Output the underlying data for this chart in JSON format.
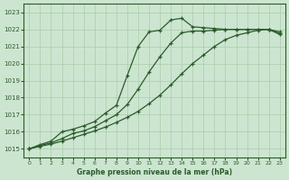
{
  "background_color": "#cce5d0",
  "grid_color": "#aaccaa",
  "line_color": "#2a5c2a",
  "marker_color": "#2a5c2a",
  "xlabel": "Graphe pression niveau de la mer (hPa)",
  "xlim": [
    -0.5,
    23.5
  ],
  "ylim": [
    1014.5,
    1023.5
  ],
  "yticks": [
    1015,
    1016,
    1017,
    1018,
    1019,
    1020,
    1021,
    1022,
    1023
  ],
  "xticks": [
    0,
    1,
    2,
    3,
    4,
    5,
    6,
    7,
    8,
    9,
    10,
    11,
    12,
    13,
    14,
    15,
    16,
    17,
    18,
    19,
    20,
    21,
    22,
    23
  ],
  "series1_x": [
    0,
    1,
    2,
    3,
    4,
    5,
    6,
    7,
    8,
    9,
    10,
    11,
    12,
    13,
    14,
    15,
    16,
    17,
    18,
    19,
    20,
    21,
    22,
    23
  ],
  "series1_y": [
    1015.0,
    1015.25,
    1015.45,
    1016.0,
    1016.15,
    1016.35,
    1016.6,
    1017.1,
    1017.55,
    1019.3,
    1021.0,
    1021.85,
    1021.95,
    1022.55,
    1022.65,
    1022.15,
    1022.1,
    1022.05,
    1022.0,
    1022.0,
    1022.0,
    1022.0,
    1022.0,
    1021.85
  ],
  "series2_x": [
    0,
    1,
    2,
    3,
    4,
    5,
    6,
    7,
    8,
    9,
    10,
    11,
    12,
    13,
    14,
    15,
    16,
    17,
    18,
    19,
    20,
    21,
    22,
    23
  ],
  "series2_y": [
    1015.0,
    1015.2,
    1015.35,
    1015.6,
    1015.9,
    1016.05,
    1016.3,
    1016.65,
    1017.0,
    1017.6,
    1018.5,
    1019.5,
    1020.4,
    1021.2,
    1021.8,
    1021.9,
    1021.9,
    1021.95,
    1022.0,
    1022.0,
    1022.0,
    1022.0,
    1022.0,
    1021.75
  ],
  "series3_x": [
    0,
    1,
    2,
    3,
    4,
    5,
    6,
    7,
    8,
    9,
    10,
    11,
    12,
    13,
    14,
    15,
    16,
    17,
    18,
    19,
    20,
    21,
    22,
    23
  ],
  "series3_y": [
    1015.0,
    1015.15,
    1015.28,
    1015.45,
    1015.65,
    1015.85,
    1016.05,
    1016.28,
    1016.55,
    1016.85,
    1017.2,
    1017.65,
    1018.15,
    1018.75,
    1019.4,
    1020.0,
    1020.5,
    1021.0,
    1021.4,
    1021.65,
    1021.8,
    1021.95,
    1022.0,
    1021.7
  ]
}
